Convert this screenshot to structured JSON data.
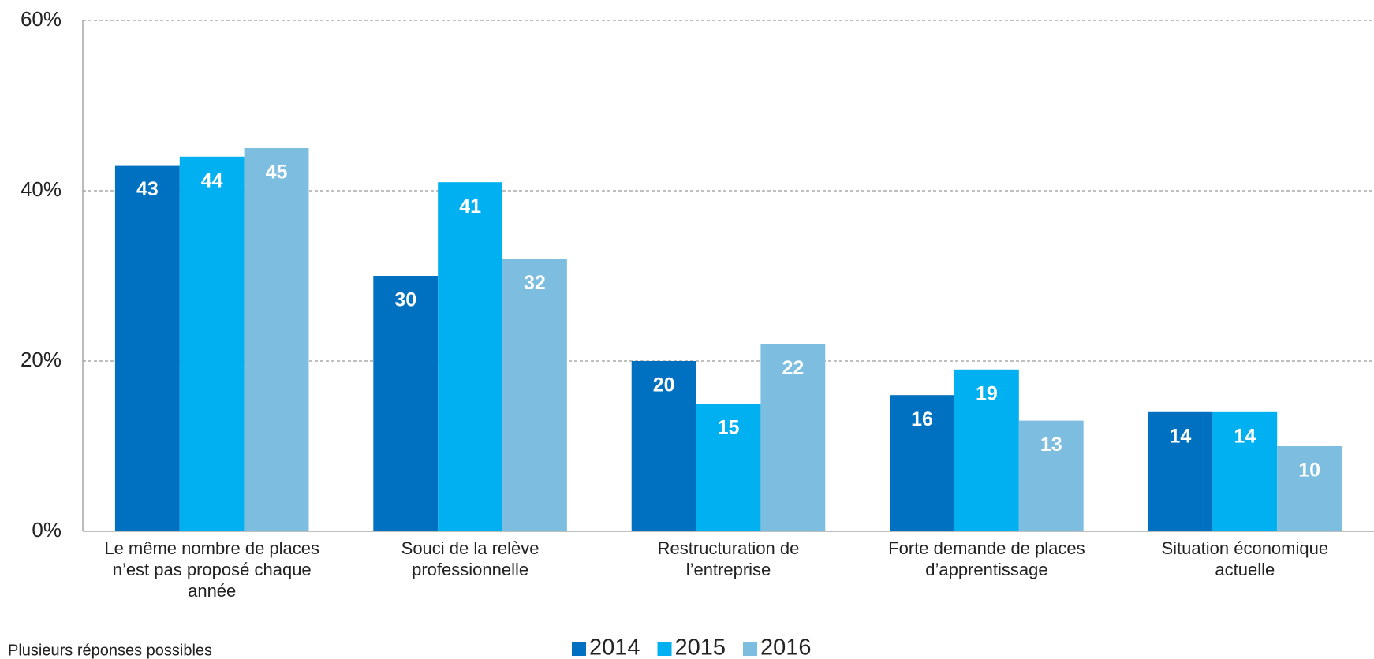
{
  "chart_data": {
    "type": "bar",
    "categories": [
      "Le même nombre de places n’est pas proposé chaque année",
      "Souci de la relève professionnelle",
      "Restructuration de l’entreprise",
      "Forte demande de places d’apprentissage",
      "Situation économique actuelle"
    ],
    "series": [
      {
        "name": "2014",
        "color": "#0070c0",
        "values": [
          43,
          30,
          20,
          16,
          14
        ]
      },
      {
        "name": "2015",
        "color": "#00b0f0",
        "values": [
          44,
          41,
          15,
          19,
          14
        ]
      },
      {
        "name": "2016",
        "color": "#7dbde0",
        "values": [
          45,
          32,
          22,
          13,
          10
        ]
      }
    ],
    "ylim": [
      0,
      60
    ],
    "yticks": [
      {
        "value": 0,
        "label": "0%"
      },
      {
        "value": 20,
        "label": "20%"
      },
      {
        "value": 40,
        "label": "40%"
      },
      {
        "value": 60,
        "label": "60%"
      }
    ],
    "grid": true,
    "legend": "bottom",
    "note": "Plusieurs réponses possibles"
  }
}
